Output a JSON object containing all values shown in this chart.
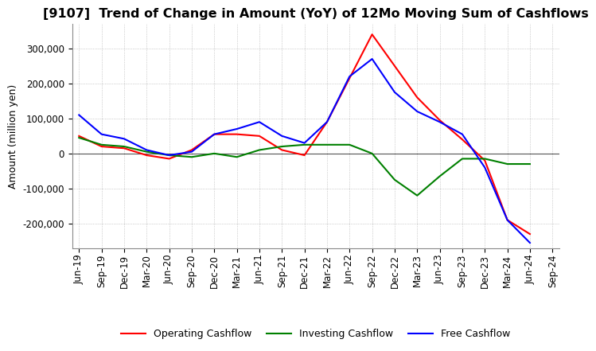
{
  "title": "[9107]  Trend of Change in Amount (YoY) of 12Mo Moving Sum of Cashflows",
  "ylabel": "Amount (million yen)",
  "ylim": [
    -270000,
    370000
  ],
  "yticks": [
    -200000,
    -100000,
    0,
    100000,
    200000,
    300000
  ],
  "dates": [
    "Jun-19",
    "Sep-19",
    "Dec-19",
    "Mar-20",
    "Jun-20",
    "Sep-20",
    "Dec-20",
    "Mar-21",
    "Jun-21",
    "Sep-21",
    "Dec-21",
    "Mar-22",
    "Jun-22",
    "Sep-22",
    "Dec-22",
    "Mar-23",
    "Jun-23",
    "Sep-23",
    "Dec-23",
    "Mar-24",
    "Jun-24",
    "Sep-24"
  ],
  "operating": [
    50000,
    20000,
    15000,
    -5000,
    -15000,
    10000,
    55000,
    55000,
    50000,
    10000,
    -5000,
    90000,
    215000,
    340000,
    250000,
    160000,
    95000,
    40000,
    -20000,
    -190000,
    -230000,
    null
  ],
  "investing": [
    45000,
    25000,
    20000,
    5000,
    -5000,
    -10000,
    0,
    -10000,
    10000,
    20000,
    25000,
    25000,
    25000,
    0,
    -75000,
    -120000,
    -65000,
    -15000,
    -15000,
    -30000,
    -30000,
    null
  ],
  "free": [
    110000,
    55000,
    42000,
    10000,
    -5000,
    5000,
    55000,
    70000,
    90000,
    50000,
    30000,
    90000,
    220000,
    270000,
    175000,
    120000,
    90000,
    55000,
    -40000,
    -190000,
    -255000,
    null
  ],
  "operating_color": "#ff0000",
  "investing_color": "#008000",
  "free_color": "#0000ff",
  "background_color": "#ffffff",
  "grid_color": "#aaaaaa",
  "title_fontsize": 11.5,
  "axis_fontsize": 9,
  "tick_fontsize": 8.5
}
